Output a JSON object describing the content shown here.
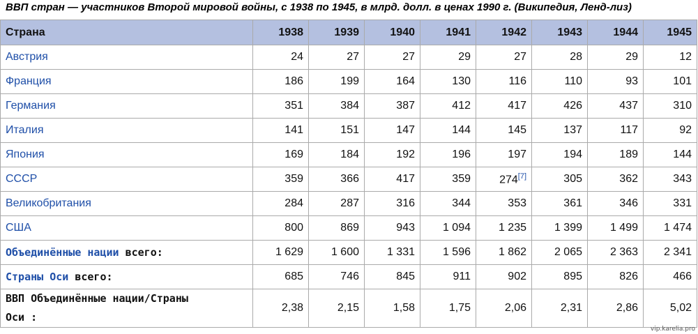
{
  "caption": "ВВП стран — участников Второй мировой войны, с 1938 по 1945, в млрд. долл. в ценах 1990 г. (Википедия, Ленд-лиз)",
  "header": {
    "country": "Страна",
    "years": [
      "1938",
      "1939",
      "1940",
      "1941",
      "1942",
      "1943",
      "1944",
      "1945"
    ]
  },
  "rows": [
    {
      "country": "Австрия",
      "values": [
        "24",
        "27",
        "27",
        "29",
        "27",
        "28",
        "29",
        "12"
      ]
    },
    {
      "country": "Франция",
      "values": [
        "186",
        "199",
        "164",
        "130",
        "116",
        "110",
        "93",
        "101"
      ]
    },
    {
      "country": "Германия",
      "values": [
        "351",
        "384",
        "387",
        "412",
        "417",
        "426",
        "437",
        "310"
      ]
    },
    {
      "country": "Италия",
      "values": [
        "141",
        "151",
        "147",
        "144",
        "145",
        "137",
        "117",
        "92"
      ]
    },
    {
      "country": "Япония",
      "values": [
        "169",
        "184",
        "192",
        "196",
        "197",
        "194",
        "189",
        "144"
      ]
    },
    {
      "country": "СССР",
      "values": [
        "359",
        "366",
        "417",
        "359",
        "274",
        "305",
        "362",
        "343"
      ],
      "ref_col": 4,
      "ref": "[7]"
    },
    {
      "country": "Великобритания",
      "values": [
        "284",
        "287",
        "316",
        "344",
        "353",
        "361",
        "346",
        "331"
      ]
    },
    {
      "country": "США",
      "values": [
        "800",
        "869",
        "943",
        "1 094",
        "1 235",
        "1 399",
        "1 499",
        "1 474"
      ]
    }
  ],
  "allies": {
    "link": "Объединённые нации",
    "suffix": " всего:",
    "values": [
      "1 629",
      "1 600",
      "1 331",
      "1 596",
      "1 862",
      "2 065",
      "2 363",
      "2 341"
    ]
  },
  "axis": {
    "link": "Страны Оси",
    "suffix": " всего:",
    "values": [
      "685",
      "746",
      "845",
      "911",
      "902",
      "895",
      "826",
      "466"
    ]
  },
  "ratio": {
    "line1": "ВВП Объединённые нации/Страны",
    "line2": "Оси :",
    "values": [
      "2,38",
      "2,15",
      "1,58",
      "1,75",
      "2,06",
      "2,31",
      "2,86",
      "5,02"
    ]
  },
  "watermark": "vip.karelia.pro",
  "colors": {
    "header_bg": "#b4c0e0",
    "allies_bg": "#d2e3cc",
    "axis_bg": "#d4d4d4",
    "ratio_bg": "#fbf8c5",
    "link": "#1f4fa8"
  }
}
